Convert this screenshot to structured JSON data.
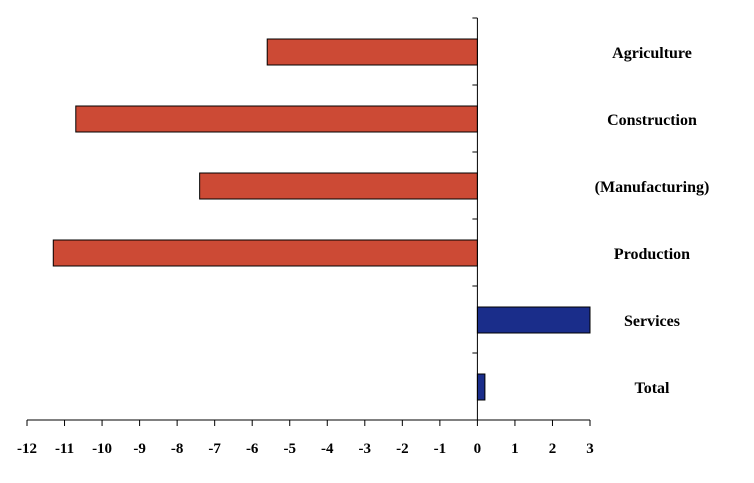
{
  "chart_data": {
    "type": "bar",
    "orientation": "horizontal",
    "title": "",
    "xlabel": "",
    "ylabel": "",
    "categories": [
      "Agriculture",
      "Construction",
      "(Manufacturing)",
      "Production",
      "Services",
      "Total"
    ],
    "values": [
      -5.6,
      -10.7,
      -7.4,
      -11.3,
      3.0,
      0.2
    ],
    "xlim": [
      -12,
      3
    ],
    "xticks": [
      -12,
      -11,
      -10,
      -9,
      -8,
      -7,
      -6,
      -5,
      -4,
      -3,
      -2,
      -1,
      0,
      1,
      2,
      3
    ],
    "xtick_labels": [
      "-12",
      "-11",
      "-10",
      "-9",
      "-8",
      "-7",
      "-6",
      "-5",
      "-4",
      "-3",
      "-2",
      "-1",
      "0",
      "1",
      "2",
      "3"
    ],
    "grid": false,
    "legend": "none",
    "colors": {
      "negative": "#cc4a35",
      "positive": "#1a2d8a",
      "bar_outline": "#000000",
      "axis": "#000000"
    }
  }
}
